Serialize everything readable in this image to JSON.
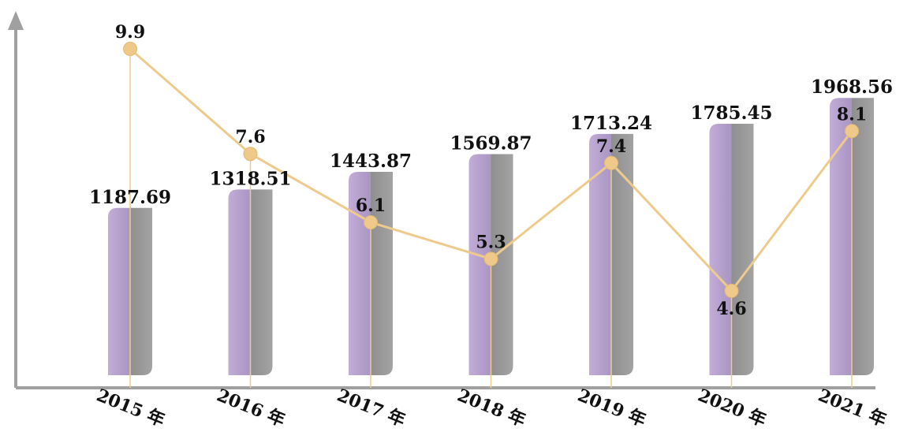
{
  "chart_data": {
    "type": "bar",
    "title": "",
    "xlabel": "",
    "ylabel": "",
    "categories": [
      "2015 年",
      "2016 年",
      "2017 年",
      "2018 年",
      "2019 年",
      "2020 年",
      "2021 年"
    ],
    "series": [
      {
        "type": "bar",
        "values": [
          1187.69,
          1318.51,
          1443.87,
          1569.87,
          1713.24,
          1785.45,
          1968.56
        ]
      },
      {
        "type": "line",
        "values": [
          9.9,
          7.6,
          6.1,
          5.3,
          7.4,
          4.6,
          8.1
        ]
      }
    ],
    "bar_labels": [
      "1187.69",
      "1318.51",
      "1443.87",
      "1569.87",
      "1713.24",
      "1785.45",
      "1968.56"
    ],
    "line_labels": [
      "9.9",
      "7.6",
      "6.1",
      "5.3",
      "7.4",
      "4.6",
      "8.1"
    ],
    "bar_ylim": [
      0,
      2100
    ],
    "line_ylim": [
      3,
      10.8
    ],
    "grid": false,
    "legend": "none",
    "colors": {
      "bar_left": "#b7a0cc",
      "bar_right": "#9b9b9b",
      "line": "#eecb8c",
      "axis": "#999999"
    }
  }
}
